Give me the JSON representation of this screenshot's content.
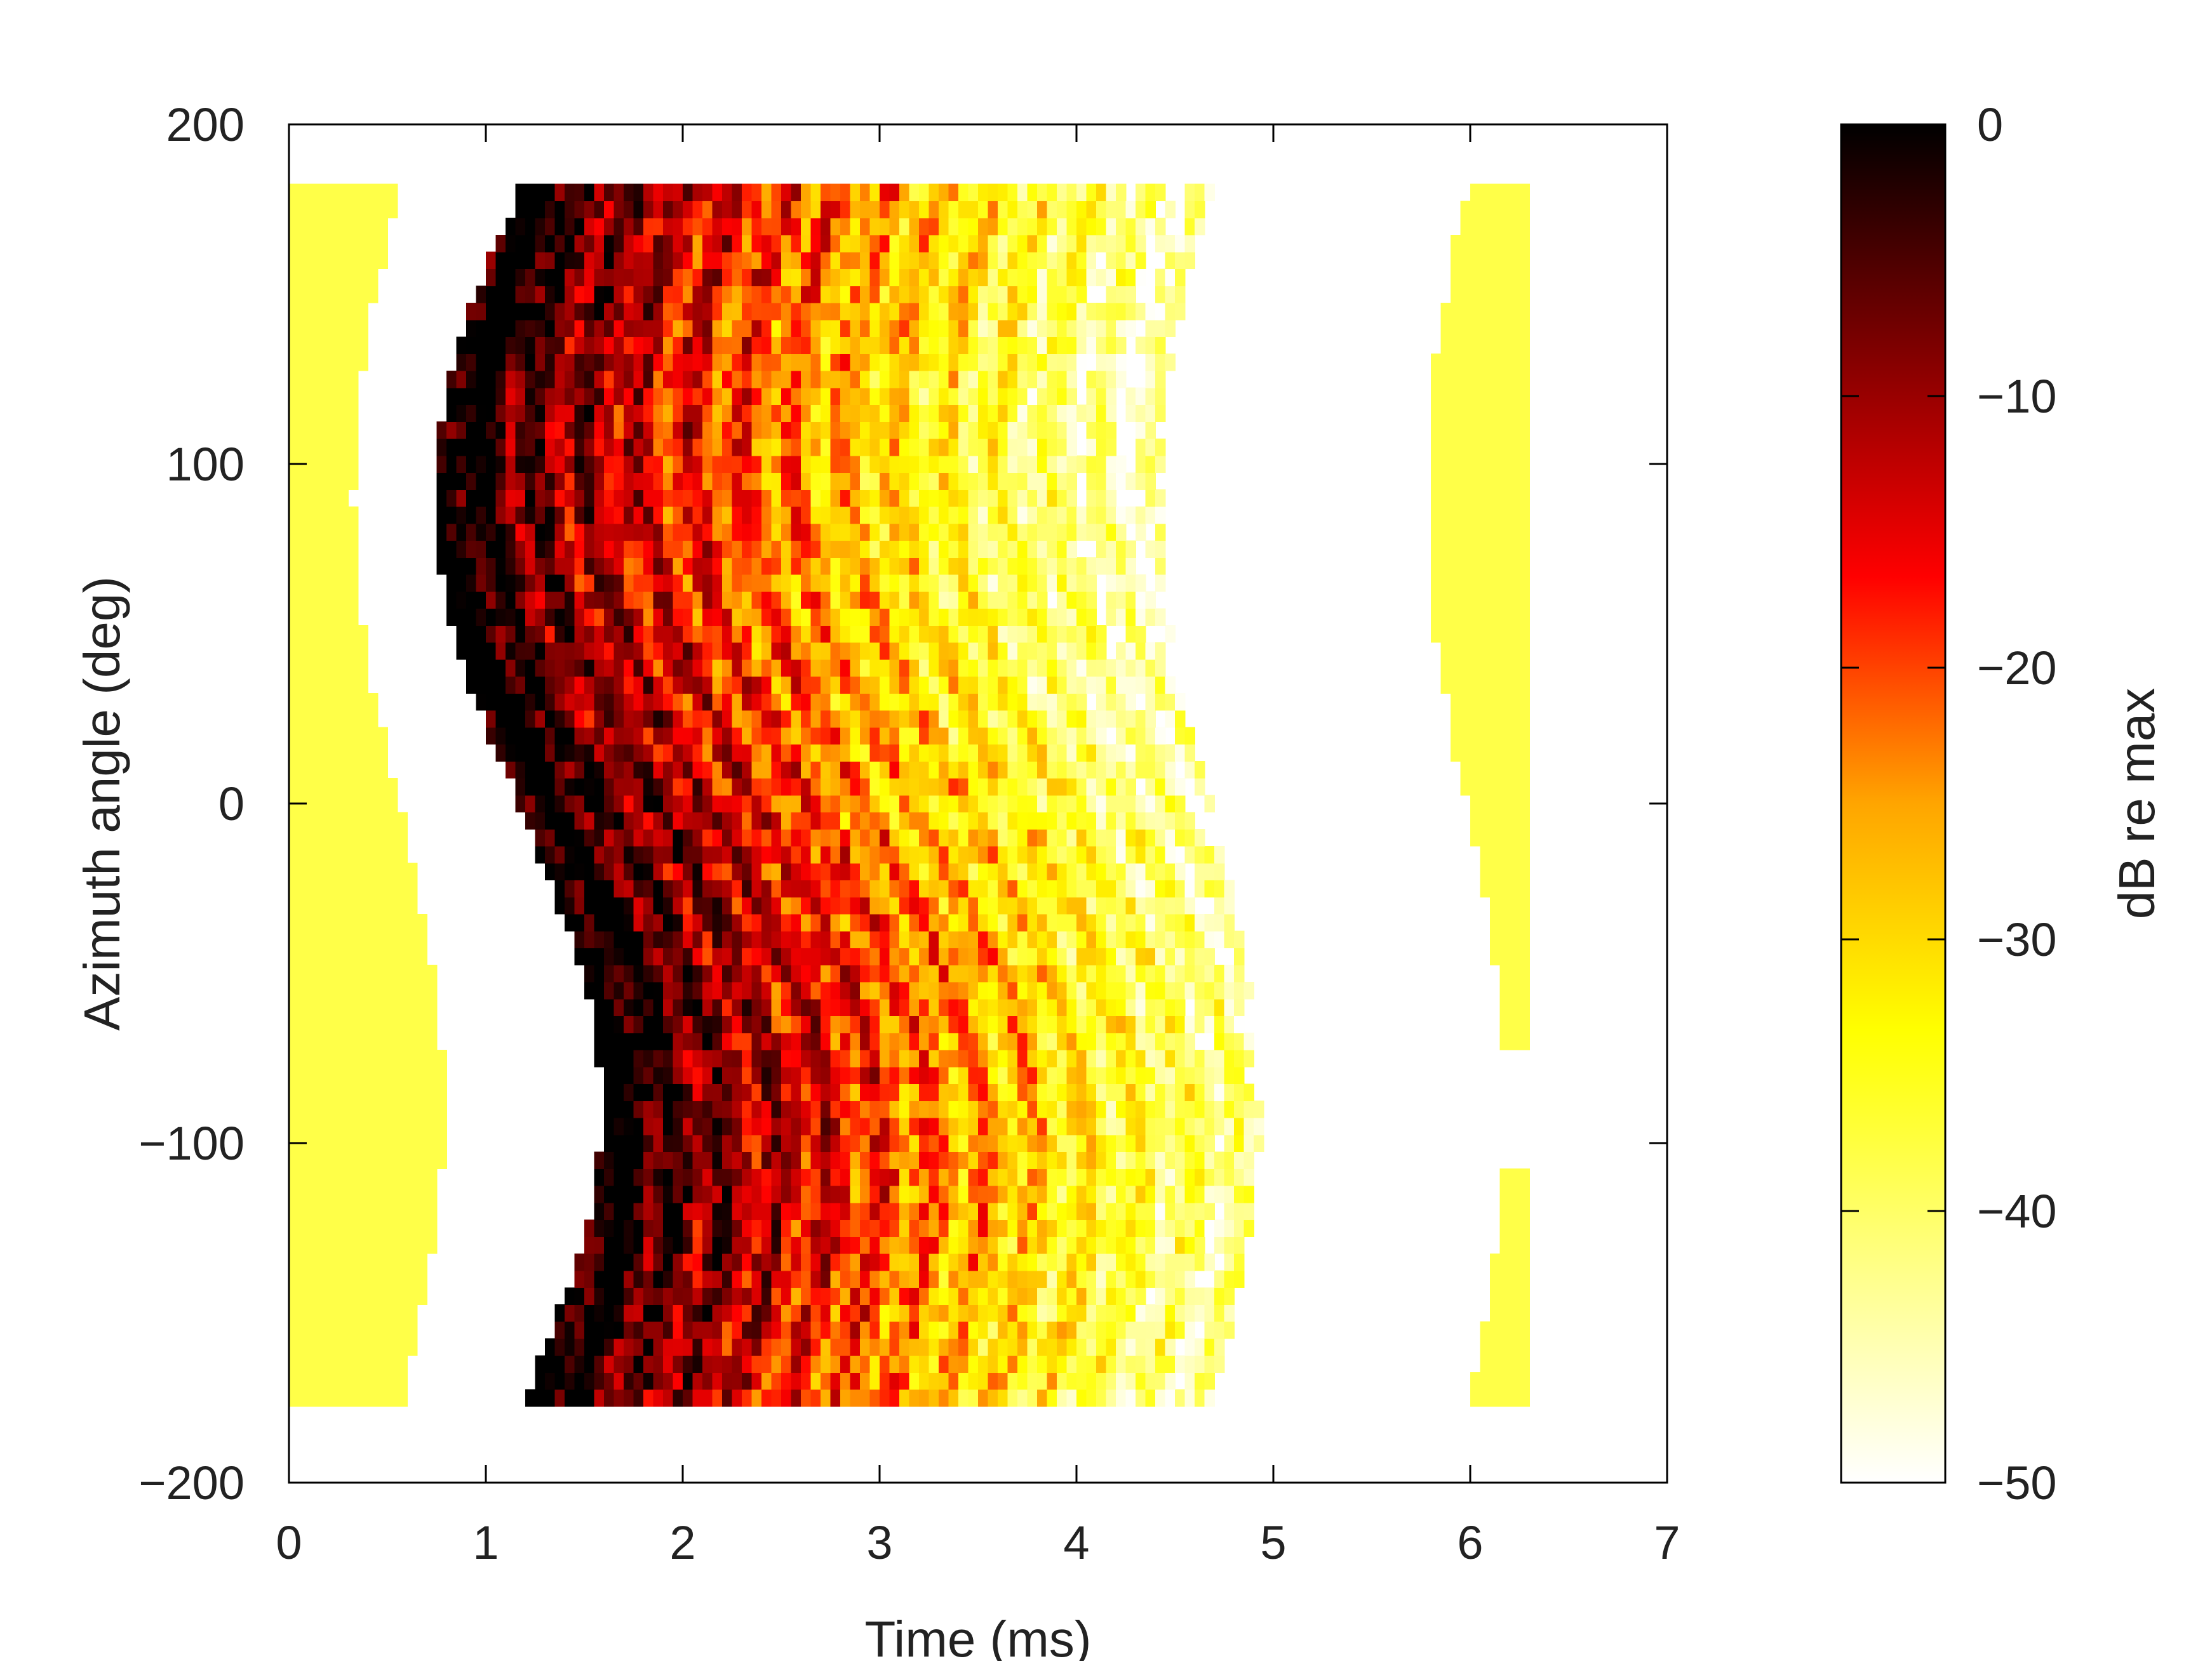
{
  "chart_data": {
    "type": "heatmap",
    "xlabel": "Time (ms)",
    "ylabel": "Azimuth angle (deg)",
    "colorbar_label": "dB re max",
    "xlim": [
      0,
      7
    ],
    "ylim": [
      -200,
      200
    ],
    "x_ticks": [
      "0",
      "1",
      "2",
      "3",
      "4",
      "5",
      "6",
      "7"
    ],
    "y_ticks": [
      "200",
      "100",
      "0",
      "−100",
      "−200"
    ],
    "colorbar_ticks": [
      "0",
      "−10",
      "−20",
      "−30",
      "−40",
      "−50"
    ],
    "clim": [
      -50,
      0
    ],
    "colormap": [
      "#ffffff",
      "#ffff80",
      "#ffff00",
      "#ffa500",
      "#ff0000",
      "#800000",
      "#000000"
    ],
    "grid": false,
    "azimuth_range": [
      -175,
      180
    ],
    "time_step_ms": 0.05,
    "azimuth_step_deg": 5,
    "features": {
      "direct_arrival_time_ms": 0.9,
      "direct_arrival_level_db": -2,
      "pre_arrival_level_db": -38,
      "pre_arrival_end_ms": 0.3,
      "late_band_level_db": -38,
      "late_band_ms": [
        5.95,
        6.25
      ],
      "decay_end_ms": 4.4
    }
  }
}
